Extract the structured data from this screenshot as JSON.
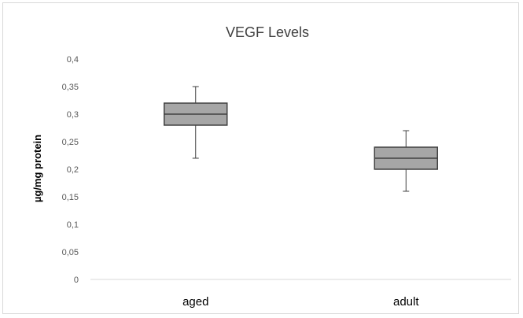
{
  "chart_data": {
    "type": "box",
    "title": "VEGF Levels",
    "xlabel": "",
    "ylabel": "µg/mg protein",
    "ylim": [
      0,
      0.4
    ],
    "yticks": [
      "0",
      "0,05",
      "0,1",
      "0,15",
      "0,2",
      "0,25",
      "0,3",
      "0,35",
      "0,4"
    ],
    "categories": [
      "aged",
      "adult"
    ],
    "boxes": [
      {
        "category": "aged",
        "min": 0.22,
        "q1": 0.28,
        "median": 0.3,
        "q3": 0.32,
        "max": 0.35
      },
      {
        "category": "adult",
        "min": 0.16,
        "q1": 0.2,
        "median": 0.22,
        "q3": 0.24,
        "max": 0.27
      }
    ],
    "box_fill": "#a6a6a6",
    "box_stroke": "#404040",
    "grid": false
  }
}
